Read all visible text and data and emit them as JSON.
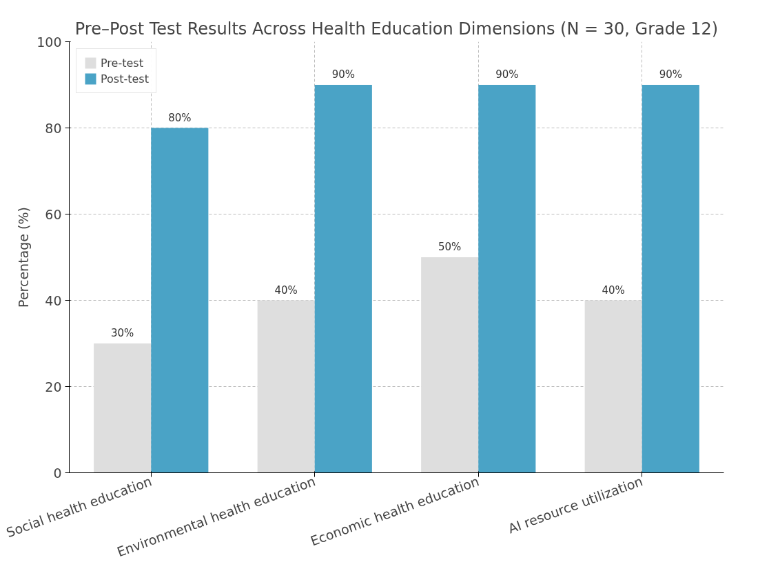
{
  "chart_data": {
    "type": "bar",
    "title": "Pre–Post Test Results Across Health Education Dimensions (N = 30, Grade 12)",
    "ylabel": "Percentage (%)",
    "categories": [
      "Social health education",
      "Environmental health education",
      "Economic health education",
      "AI resource utilization"
    ],
    "series": [
      {
        "name": "Pre-test",
        "color": "#dedede",
        "values": [
          30,
          40,
          50,
          40
        ],
        "value_labels": [
          "30%",
          "40%",
          "50%",
          "40%"
        ]
      },
      {
        "name": "Post-test",
        "color": "#4aa3c6",
        "values": [
          80,
          90,
          90,
          90
        ],
        "value_labels": [
          "80%",
          "90%",
          "90%",
          "90%"
        ]
      }
    ],
    "ylim": [
      0,
      100
    ],
    "yticks": [
      0,
      20,
      40,
      60,
      80,
      100
    ],
    "grid": true,
    "legend": "top left"
  }
}
